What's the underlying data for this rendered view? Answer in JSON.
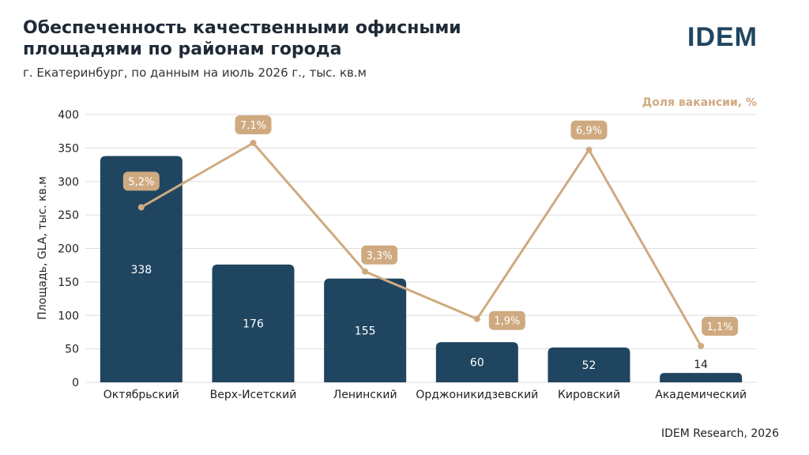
{
  "header": {
    "title": "Обеспеченность качественными офисными площадями по районам города",
    "subtitle": "г. Екатеринбург, по данным на июль 2026 г., тыс. кв.м",
    "logo_text": "IDEM"
  },
  "footer": {
    "source": "IDEM Research, 2026"
  },
  "colors": {
    "bar": "#1f4560",
    "line": "#cfaa80",
    "grid": "#dddddd"
  },
  "chart_data": {
    "type": "bar",
    "categories": [
      "Октябрьский",
      "Верх-Исетский",
      "Ленинский",
      "Орджоникидзевский",
      "Кировский",
      "Академический"
    ],
    "ylabel": "Площадь, GLA, тыс. кв.м",
    "ylim": [
      0,
      400
    ],
    "yticks": [
      0,
      50,
      100,
      150,
      200,
      250,
      300,
      350,
      400
    ],
    "grid": true,
    "legend_position": "top-right",
    "series": [
      {
        "type": "bar",
        "values": [
          338,
          176,
          155,
          60,
          52,
          14
        ],
        "labels": [
          "338",
          "176",
          "155",
          "60",
          "52",
          "14"
        ]
      },
      {
        "name": "Доля вакансии, %",
        "type": "line",
        "values": [
          5.2,
          7.1,
          3.3,
          1.9,
          6.9,
          1.1
        ],
        "labels": [
          "5,2%",
          "7,1%",
          "3,3%",
          "1,9%",
          "6,9%",
          "1,1%"
        ]
      }
    ]
  }
}
